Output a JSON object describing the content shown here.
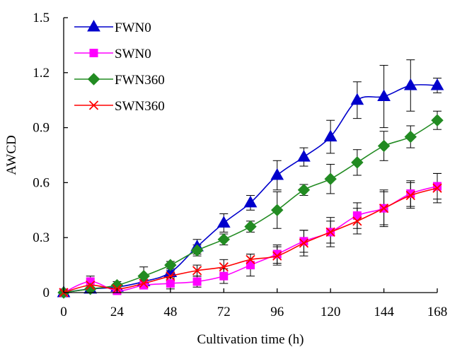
{
  "chart_data": {
    "type": "line",
    "title": "",
    "xlabel": "Cultivation time (h)",
    "ylabel": "AWCD",
    "xlim": [
      0,
      168
    ],
    "ylim": [
      0,
      1.5
    ],
    "x_ticks": [
      0,
      24,
      48,
      72,
      96,
      120,
      144,
      168
    ],
    "x_tick_labels": [
      "0",
      "24",
      "48",
      "72",
      "96",
      "120",
      "144",
      "168"
    ],
    "y_ticks": [
      0,
      0.3,
      0.6,
      0.9,
      1.2,
      1.5
    ],
    "y_tick_labels": [
      "0",
      "0.3",
      "0.6",
      "0.9",
      "1.2",
      "1.5"
    ],
    "grid": false,
    "legend_position": "top-left",
    "x": [
      0,
      12,
      24,
      36,
      48,
      60,
      72,
      84,
      96,
      108,
      120,
      132,
      144,
      156,
      168
    ],
    "series": [
      {
        "name": "FWN0",
        "color": "#0000CC",
        "marker": "triangle",
        "values": [
          0,
          0.02,
          0.03,
          0.06,
          0.11,
          0.25,
          0.38,
          0.49,
          0.64,
          0.74,
          0.85,
          1.05,
          1.07,
          1.13,
          1.13
        ],
        "errors": [
          0,
          0.02,
          0.02,
          0.03,
          0.03,
          0.04,
          0.05,
          0.04,
          0.08,
          0.05,
          0.09,
          0.1,
          0.17,
          0.14,
          0.04
        ]
      },
      {
        "name": "SWN0",
        "color": "#FF00FF",
        "marker": "square",
        "values": [
          0,
          0.06,
          0.01,
          0.04,
          0.05,
          0.06,
          0.09,
          0.15,
          0.21,
          0.28,
          0.33,
          0.42,
          0.46,
          0.54,
          0.58
        ],
        "errors": [
          0,
          0.03,
          0.02,
          0.02,
          0.03,
          0.03,
          0.04,
          0.06,
          0.05,
          0.06,
          0.08,
          0.07,
          0.09,
          0.07,
          0.07
        ]
      },
      {
        "name": "FWN360",
        "color": "#228B22",
        "marker": "diamond",
        "values": [
          0,
          0.02,
          0.04,
          0.09,
          0.15,
          0.23,
          0.29,
          0.36,
          0.45,
          0.56,
          0.62,
          0.71,
          0.8,
          0.85,
          0.94
        ],
        "errors": [
          0,
          0.02,
          0.02,
          0.05,
          0.02,
          0.03,
          0.03,
          0.03,
          0.1,
          0.03,
          0.08,
          0.07,
          0.08,
          0.06,
          0.05
        ]
      },
      {
        "name": "SWN360",
        "color": "#FF0000",
        "marker": "x",
        "values": [
          0,
          0.04,
          0.02,
          0.05,
          0.09,
          0.12,
          0.14,
          0.18,
          0.2,
          0.27,
          0.33,
          0.39,
          0.46,
          0.53,
          0.57
        ],
        "errors": [
          0,
          0.02,
          0.02,
          0.02,
          0.03,
          0.03,
          0.04,
          0.03,
          0.05,
          0.07,
          0.06,
          0.07,
          0.1,
          0.07,
          0.08
        ]
      }
    ]
  }
}
